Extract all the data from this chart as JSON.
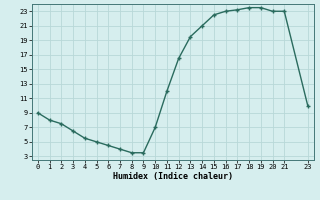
{
  "x": [
    0,
    1,
    2,
    3,
    4,
    5,
    6,
    7,
    8,
    9,
    10,
    11,
    12,
    13,
    14,
    15,
    16,
    17,
    18,
    19,
    20,
    21,
    23
  ],
  "y": [
    9.0,
    8.0,
    7.5,
    6.5,
    5.5,
    5.0,
    4.5,
    4.0,
    3.5,
    3.5,
    7.0,
    12.0,
    16.5,
    19.5,
    21.0,
    22.5,
    23.0,
    23.2,
    23.5,
    23.5,
    23.0,
    23.0,
    10.0
  ],
  "xlabel": "Humidex (Indice chaleur)",
  "xlim": [
    -0.5,
    23.5
  ],
  "ylim": [
    2.5,
    24.0
  ],
  "yticks": [
    3,
    5,
    7,
    9,
    11,
    13,
    15,
    17,
    19,
    21,
    23
  ],
  "xticks": [
    0,
    1,
    2,
    3,
    4,
    5,
    6,
    7,
    8,
    9,
    10,
    11,
    12,
    13,
    14,
    15,
    16,
    17,
    18,
    19,
    20,
    21,
    23
  ],
  "line_color": "#2a6b5e",
  "bg_color": "#d6eeee",
  "grid_color": "#b8d8d8"
}
